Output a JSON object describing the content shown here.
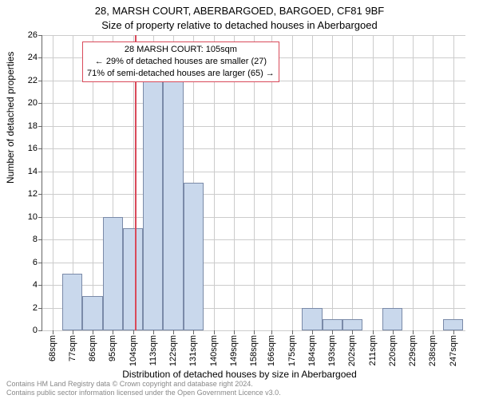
{
  "chart": {
    "type": "histogram",
    "title_line1": "28, MARSH COURT, ABERBARGOED, BARGOED, CF81 9BF",
    "title_line2": "Size of property relative to detached houses in Aberbargoed",
    "title_fontsize": 13,
    "ylabel": "Number of detached properties",
    "xlabel": "Distribution of detached houses by size in Aberbargoed",
    "label_fontsize": 12,
    "background_color": "#ffffff",
    "grid_color": "#cccccc",
    "axis_color": "#666666",
    "bar_fill": "#c9d8ec",
    "bar_border": "#7a8aa8",
    "marker_color": "#d94a5a",
    "annotation_border": "#d94a5a",
    "ylim": [
      0,
      26
    ],
    "yticks": [
      0,
      2,
      4,
      6,
      8,
      10,
      12,
      14,
      16,
      18,
      20,
      22,
      24,
      26
    ],
    "xlim": [
      63.5,
      252.5
    ],
    "xticks": [
      68,
      77,
      86,
      95,
      104,
      113,
      122,
      131,
      140,
      149,
      158,
      166,
      175,
      184,
      193,
      202,
      211,
      220,
      229,
      238,
      247
    ],
    "xtick_suffix": "sqm",
    "tick_fontsize": 11,
    "bin_width": 9,
    "bins": [
      {
        "x": 68,
        "count": 0
      },
      {
        "x": 77,
        "count": 5
      },
      {
        "x": 86,
        "count": 3
      },
      {
        "x": 95,
        "count": 10
      },
      {
        "x": 104,
        "count": 9
      },
      {
        "x": 113,
        "count": 22
      },
      {
        "x": 122,
        "count": 22
      },
      {
        "x": 131,
        "count": 13
      },
      {
        "x": 140,
        "count": 0
      },
      {
        "x": 149,
        "count": 0
      },
      {
        "x": 158,
        "count": 0
      },
      {
        "x": 166,
        "count": 0
      },
      {
        "x": 175,
        "count": 0
      },
      {
        "x": 184,
        "count": 2
      },
      {
        "x": 193,
        "count": 1
      },
      {
        "x": 202,
        "count": 1
      },
      {
        "x": 211,
        "count": 0
      },
      {
        "x": 220,
        "count": 2
      },
      {
        "x": 229,
        "count": 0
      },
      {
        "x": 238,
        "count": 0
      },
      {
        "x": 247,
        "count": 1
      }
    ],
    "marker_x": 105,
    "annotation": {
      "line1": "28 MARSH COURT: 105sqm",
      "line2": "← 29% of detached houses are smaller (27)",
      "line3": "71% of semi-detached houses are larger (65) →",
      "fontsize": 11
    },
    "footer_line1": "Contains HM Land Registry data © Crown copyright and database right 2024.",
    "footer_line2": "Contains public sector information licensed under the Open Government Licence v3.0.",
    "footer_color": "#888888",
    "footer_fontsize": 9
  }
}
